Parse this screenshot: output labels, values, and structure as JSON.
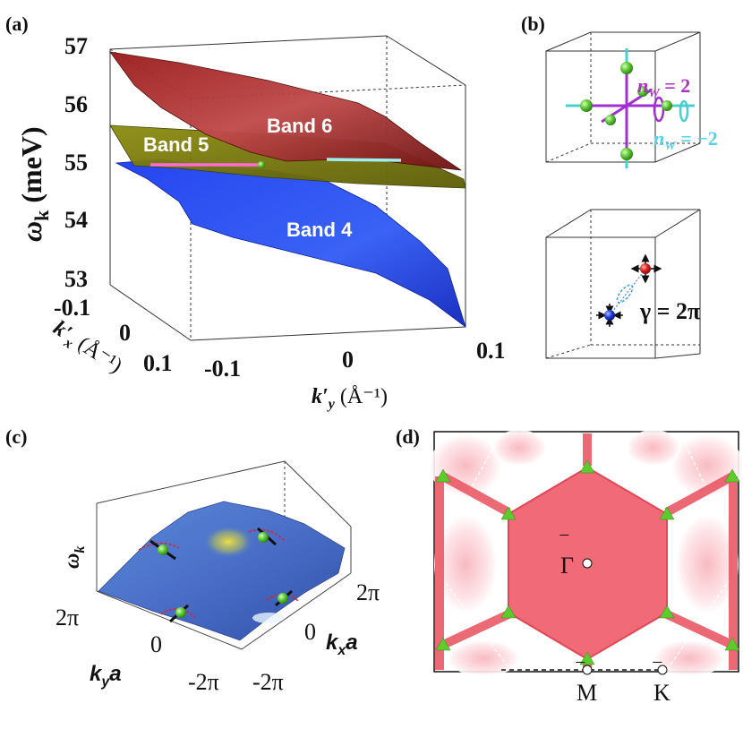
{
  "figure": {
    "panels": [
      {
        "id": "a",
        "label": "(a)",
        "y_axis": {
          "label": "ω",
          "subscript": "k",
          "unit": "(meV)",
          "ticks": [
            "57",
            "56",
            "55",
            "54",
            "53"
          ]
        },
        "kx_axis": {
          "label": "k′",
          "subscript": "x",
          "unit": "(Å⁻¹)",
          "ticks": [
            "-0.1",
            "0",
            "0.1"
          ]
        },
        "ky_axis": {
          "label": "k′",
          "subscript": "y",
          "unit": "(Å⁻¹)",
          "ticks": [
            "-0.1",
            "0",
            "0.1"
          ]
        },
        "bands": [
          {
            "label": "Band 6",
            "color": "#8b1a1a"
          },
          {
            "label": "Band 5",
            "color": "#8a8a0a"
          },
          {
            "label": "Band 4",
            "color": "#1f3fe0"
          }
        ]
      },
      {
        "id": "b",
        "label": "(b)",
        "top": {
          "nw_plus": {
            "text": "n",
            "sub": "W",
            "value": " = 2",
            "color": "#a020c0"
          },
          "nw_minus": {
            "text": "n",
            "sub": "W",
            "value": " = −2",
            "color": "#40c8e0"
          }
        },
        "bottom": {
          "gamma": "γ = 2π"
        }
      },
      {
        "id": "c",
        "label": "(c)",
        "z_label": {
          "text": "ω",
          "sub": "k"
        },
        "kx_label": "k_x a",
        "ky_label": "k_y a",
        "kx_ticks": [
          "2π",
          "0",
          "-2π"
        ],
        "ky_ticks": [
          "2π",
          "0",
          "-2π"
        ]
      },
      {
        "id": "d",
        "label": "(d)",
        "points": [
          {
            "name": "Γ",
            "over": "‾"
          },
          {
            "name": "M",
            "over": "‾"
          },
          {
            "name": "K",
            "over": "‾"
          }
        ],
        "colors": {
          "fill": "#f06a78",
          "marker": "#5ecb2c"
        }
      }
    ]
  }
}
